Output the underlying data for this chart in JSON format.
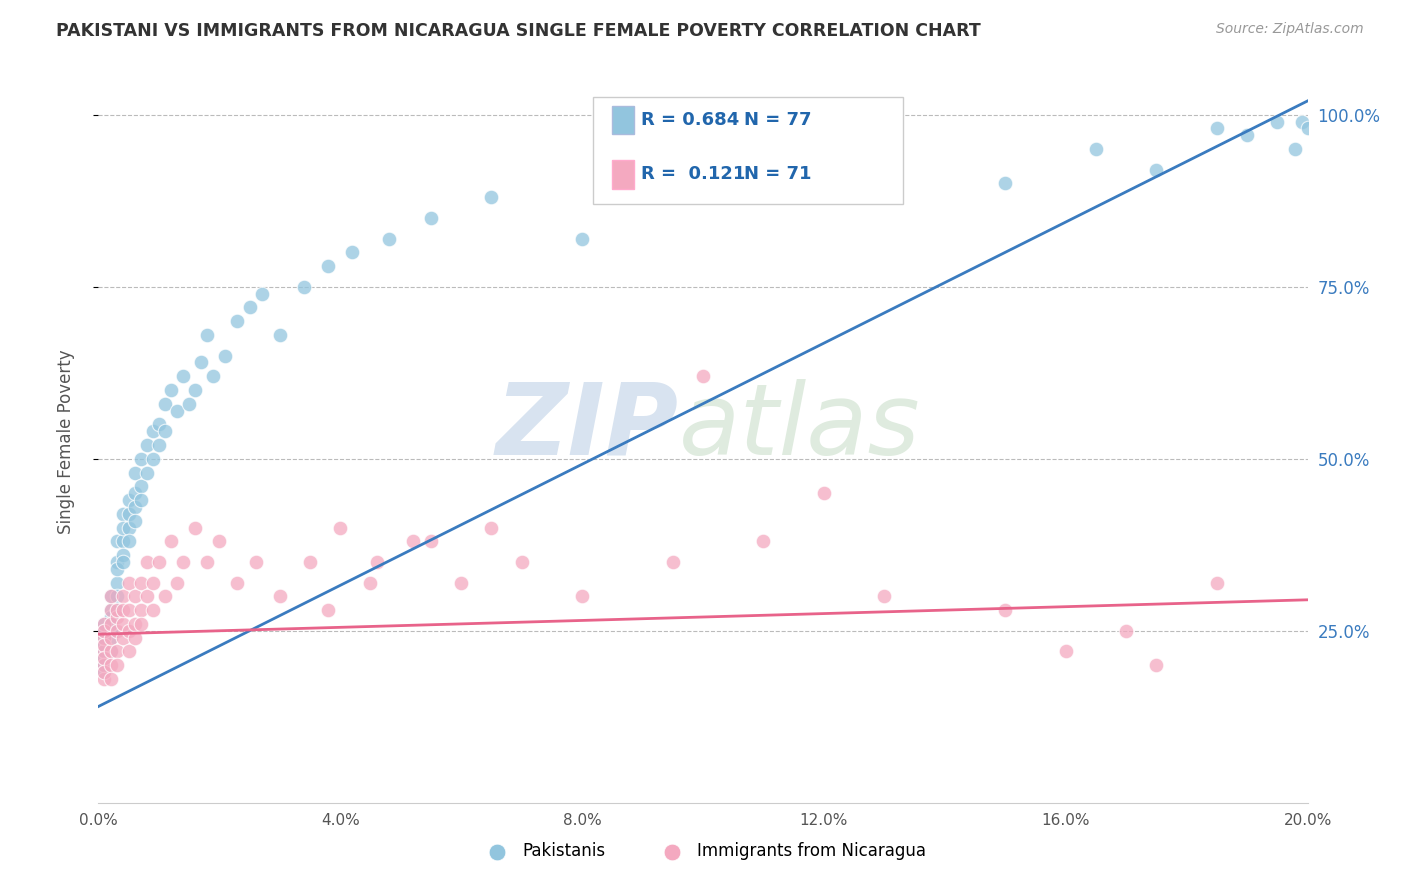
{
  "title": "PAKISTANI VS IMMIGRANTS FROM NICARAGUA SINGLE FEMALE POVERTY CORRELATION CHART",
  "source": "Source: ZipAtlas.com",
  "ylabel": "Single Female Poverty",
  "blue_color": "#92c5de",
  "pink_color": "#f4a9c0",
  "blue_line_color": "#3a7bbf",
  "pink_line_color": "#e8638a",
  "blue_r": "R = 0.684",
  "blue_n": "N = 77",
  "pink_r": "R =  0.121",
  "pink_n": "N = 71",
  "label_blue": "Pakistanis",
  "label_pink": "Immigrants from Nicaragua",
  "xmin": 0.0,
  "xmax": 0.2,
  "ymin": 0.0,
  "ymax": 1.05,
  "xticks": [
    0.0,
    0.04,
    0.08,
    0.12,
    0.16,
    0.2
  ],
  "xticklabels": [
    "0.0%",
    "4.0%",
    "8.0%",
    "12.0%",
    "16.0%",
    "20.0%"
  ],
  "yticks": [
    0.25,
    0.5,
    0.75,
    1.0
  ],
  "yticklabels": [
    "25.0%",
    "50.0%",
    "75.0%",
    "100.0%"
  ],
  "pak_x": [
    0.001,
    0.001,
    0.001,
    0.001,
    0.001,
    0.001,
    0.001,
    0.001,
    0.002,
    0.002,
    0.002,
    0.002,
    0.002,
    0.002,
    0.002,
    0.003,
    0.003,
    0.003,
    0.003,
    0.003,
    0.003,
    0.004,
    0.004,
    0.004,
    0.004,
    0.004,
    0.005,
    0.005,
    0.005,
    0.005,
    0.006,
    0.006,
    0.006,
    0.006,
    0.007,
    0.007,
    0.007,
    0.008,
    0.008,
    0.009,
    0.009,
    0.01,
    0.01,
    0.011,
    0.011,
    0.012,
    0.013,
    0.014,
    0.015,
    0.016,
    0.017,
    0.018,
    0.019,
    0.021,
    0.023,
    0.025,
    0.027,
    0.03,
    0.034,
    0.038,
    0.042,
    0.048,
    0.055,
    0.065,
    0.08,
    0.095,
    0.11,
    0.13,
    0.15,
    0.165,
    0.175,
    0.185,
    0.19,
    0.195,
    0.198,
    0.199,
    0.2
  ],
  "pak_y": [
    0.22,
    0.24,
    0.21,
    0.26,
    0.2,
    0.23,
    0.19,
    0.25,
    0.28,
    0.3,
    0.27,
    0.25,
    0.22,
    0.26,
    0.24,
    0.32,
    0.35,
    0.3,
    0.28,
    0.34,
    0.38,
    0.38,
    0.42,
    0.36,
    0.4,
    0.35,
    0.44,
    0.4,
    0.38,
    0.42,
    0.45,
    0.48,
    0.43,
    0.41,
    0.5,
    0.46,
    0.44,
    0.52,
    0.48,
    0.54,
    0.5,
    0.55,
    0.52,
    0.58,
    0.54,
    0.6,
    0.57,
    0.62,
    0.58,
    0.6,
    0.64,
    0.68,
    0.62,
    0.65,
    0.7,
    0.72,
    0.74,
    0.68,
    0.75,
    0.78,
    0.8,
    0.82,
    0.85,
    0.88,
    0.82,
    0.9,
    0.92,
    0.95,
    0.9,
    0.95,
    0.92,
    0.98,
    0.97,
    0.99,
    0.95,
    0.99,
    0.98
  ],
  "nic_x": [
    0.001,
    0.001,
    0.001,
    0.001,
    0.001,
    0.001,
    0.001,
    0.001,
    0.001,
    0.002,
    0.002,
    0.002,
    0.002,
    0.002,
    0.002,
    0.002,
    0.003,
    0.003,
    0.003,
    0.003,
    0.003,
    0.004,
    0.004,
    0.004,
    0.004,
    0.005,
    0.005,
    0.005,
    0.005,
    0.006,
    0.006,
    0.006,
    0.007,
    0.007,
    0.007,
    0.008,
    0.008,
    0.009,
    0.009,
    0.01,
    0.011,
    0.012,
    0.013,
    0.014,
    0.016,
    0.018,
    0.02,
    0.023,
    0.026,
    0.03,
    0.035,
    0.04,
    0.046,
    0.052,
    0.06,
    0.07,
    0.08,
    0.095,
    0.11,
    0.13,
    0.15,
    0.17,
    0.185,
    0.1,
    0.12,
    0.065,
    0.055,
    0.045,
    0.038,
    0.16,
    0.175
  ],
  "nic_y": [
    0.22,
    0.24,
    0.2,
    0.18,
    0.26,
    0.23,
    0.21,
    0.19,
    0.25,
    0.28,
    0.22,
    0.2,
    0.26,
    0.24,
    0.18,
    0.3,
    0.25,
    0.27,
    0.22,
    0.2,
    0.28,
    0.3,
    0.26,
    0.24,
    0.28,
    0.32,
    0.25,
    0.22,
    0.28,
    0.3,
    0.26,
    0.24,
    0.28,
    0.32,
    0.26,
    0.3,
    0.35,
    0.28,
    0.32,
    0.35,
    0.3,
    0.38,
    0.32,
    0.35,
    0.4,
    0.35,
    0.38,
    0.32,
    0.35,
    0.3,
    0.35,
    0.4,
    0.35,
    0.38,
    0.32,
    0.35,
    0.3,
    0.35,
    0.38,
    0.3,
    0.28,
    0.25,
    0.32,
    0.62,
    0.45,
    0.4,
    0.38,
    0.32,
    0.28,
    0.22,
    0.2
  ],
  "blue_line_x0": 0.0,
  "blue_line_y0": 0.14,
  "blue_line_x1": 0.2,
  "blue_line_y1": 1.02,
  "pink_line_x0": 0.0,
  "pink_line_y0": 0.245,
  "pink_line_x1": 0.2,
  "pink_line_y1": 0.295
}
